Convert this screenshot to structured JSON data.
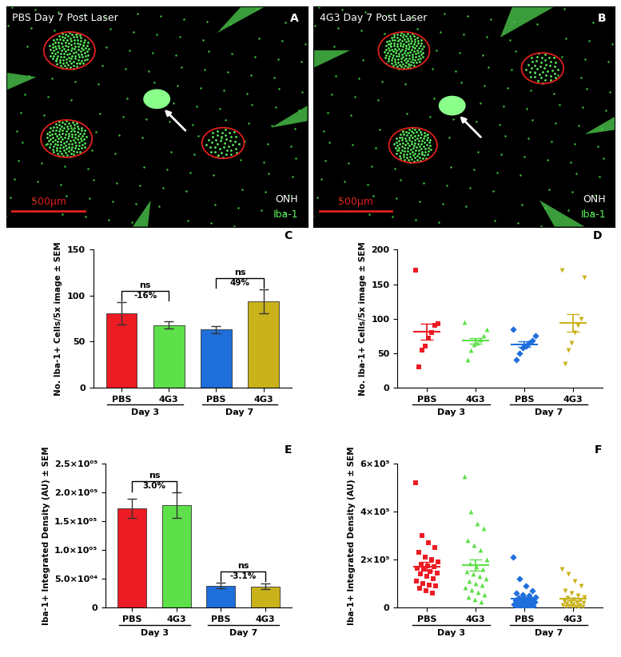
{
  "images": [
    {
      "panel_label": "A",
      "title": "PBS Day 7 Post Laser",
      "labels": [
        "ONH",
        "Iba-1"
      ],
      "scale_bar": "500µm"
    },
    {
      "panel_label": "B",
      "title": "4G3 Day 7 Post Laser",
      "labels": [
        "ONH",
        "Iba-1"
      ],
      "scale_bar": "500µm"
    }
  ],
  "chart_data": [
    {
      "panel_label": "C",
      "type": "bar",
      "y_label": "No. Iba-1+ Cells/5x image ± SEM",
      "categories": [
        "PBS",
        "4G3",
        "PBS",
        "4G3"
      ],
      "group_labels": [
        "Day 3",
        "Day 7"
      ],
      "values": [
        81,
        68,
        63,
        94
      ],
      "errors": [
        12,
        4,
        4,
        13
      ],
      "colors": [
        "#ed1c24",
        "#5ee04a",
        "#1e6fdc",
        "#c9b21a"
      ],
      "ylim": [
        0,
        150
      ],
      "yticks": [
        0,
        50,
        100,
        150
      ],
      "annotations": [
        {
          "text": "ns",
          "note": "-16%",
          "between": [
            0,
            1
          ]
        },
        {
          "text": "ns",
          "note": "49%",
          "between": [
            2,
            3
          ]
        }
      ]
    },
    {
      "panel_label": "D",
      "type": "scatter",
      "y_label": "No. Iba-1+ Cells/5x image ± SEM",
      "categories": [
        "PBS",
        "4G3",
        "PBS",
        "4G3"
      ],
      "group_labels": [
        "Day 3",
        "Day 7"
      ],
      "points": [
        [
          170,
          93,
          90,
          80,
          72,
          60,
          55,
          30
        ],
        [
          95,
          85,
          75,
          70,
          65,
          62,
          55,
          40
        ],
        [
          85,
          75,
          68,
          65,
          60,
          58,
          50,
          40
        ],
        [
          170,
          160,
          100,
          90,
          80,
          65,
          55,
          35
        ]
      ],
      "values": [
        81,
        68,
        63,
        94
      ],
      "errors": [
        12,
        4,
        4,
        13
      ],
      "colors": [
        "#ed1c24",
        "#5ee04a",
        "#1e6fdc",
        "#c9b21a"
      ],
      "markers": [
        "square",
        "triangle",
        "diamond",
        "triangle_down"
      ],
      "ylim": [
        0,
        200
      ],
      "yticks": [
        0,
        50,
        100,
        150,
        200
      ]
    },
    {
      "panel_label": "E",
      "type": "bar",
      "y_label": "Iba-1+ Integrated Density (AU) ± SEM",
      "categories": [
        "PBS",
        "4G3",
        "PBS",
        "4G3"
      ],
      "group_labels": [
        "Day 3",
        "Day 7"
      ],
      "values": [
        172000,
        177000,
        38000,
        37000
      ],
      "errors": [
        17000,
        22000,
        5000,
        5000
      ],
      "colors": [
        "#ed1c24",
        "#5ee04a",
        "#1e6fdc",
        "#c9b21a"
      ],
      "ylim": [
        0,
        250000
      ],
      "yticks": [
        0,
        {
          "value": 50000,
          "label": "5.0×10⁰⁴"
        },
        {
          "value": 100000,
          "label": "1.0×10⁰⁵"
        },
        {
          "value": 150000,
          "label": "1.5×10⁰⁵"
        },
        {
          "value": 200000,
          "label": "2.0×10⁰⁵"
        },
        {
          "value": 250000,
          "label": "2.5×10⁰⁵"
        }
      ],
      "annotations": [
        {
          "text": "ns",
          "note": "3.0%",
          "between": [
            0,
            1
          ]
        },
        {
          "text": "ns",
          "note": "-3.1%",
          "between": [
            2,
            3
          ]
        }
      ]
    },
    {
      "panel_label": "F",
      "type": "scatter",
      "y_label": "Iba-1+ Integrated Density (AU) ± SEM",
      "categories": [
        "PBS",
        "4G3",
        "PBS",
        "4G3"
      ],
      "group_labels": [
        "Day 3",
        "Day 7"
      ],
      "points": [
        [
          520000,
          300000,
          270000,
          250000,
          230000,
          210000,
          200000,
          190000,
          180000,
          175000,
          170000,
          165000,
          160000,
          150000,
          145000,
          140000,
          130000,
          120000,
          110000,
          100000,
          95000,
          90000,
          80000,
          70000,
          60000
        ],
        [
          545000,
          400000,
          350000,
          330000,
          280000,
          260000,
          240000,
          200000,
          185000,
          170000,
          160000,
          150000,
          140000,
          130000,
          120000,
          110000,
          100000,
          95000,
          85000,
          75000,
          65000,
          55000,
          45000,
          35000,
          25000
        ],
        [
          210000,
          120000,
          90000,
          70000,
          60000,
          55000,
          50000,
          45000,
          40000,
          38000,
          35000,
          32000,
          30000,
          28000,
          25000,
          22000,
          20000,
          18000,
          15000,
          12000,
          10000,
          8000,
          6000,
          5000,
          3000
        ],
        [
          160000,
          140000,
          110000,
          90000,
          70000,
          60000,
          50000,
          45000,
          40000,
          35000,
          30000,
          28000,
          25000,
          22000,
          20000,
          18000,
          15000,
          12000,
          10000,
          8000,
          6000,
          5000,
          4000,
          3000,
          2000
        ]
      ],
      "values": [
        172000,
        177000,
        38000,
        37000
      ],
      "errors": [
        17000,
        22000,
        5000,
        5000
      ],
      "colors": [
        "#ed1c24",
        "#5ee04a",
        "#1e6fdc",
        "#c9b21a"
      ],
      "markers": [
        "square",
        "triangle",
        "diamond",
        "triangle_down"
      ],
      "ylim": [
        0,
        600000
      ],
      "yticks": [
        0,
        {
          "value": 200000,
          "label": "2×10⁵"
        },
        {
          "value": 400000,
          "label": "4×10⁵"
        },
        {
          "value": 600000,
          "label": "6×10⁵"
        }
      ]
    }
  ]
}
